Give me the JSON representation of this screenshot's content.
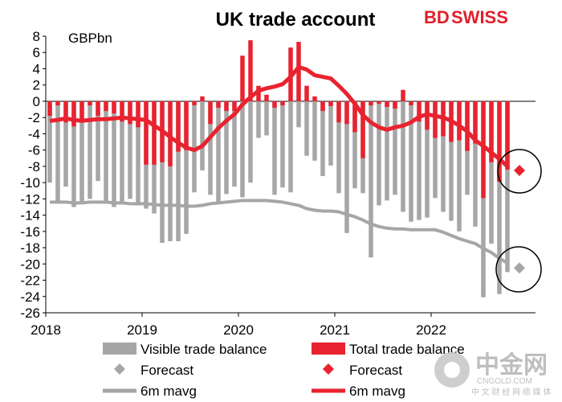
{
  "chart_data": {
    "type": "bar",
    "title": "UK trade account",
    "unit_label": "GBPbn",
    "xlabel": "",
    "ylabel": "GBPbn",
    "ylim": [
      -26,
      8
    ],
    "y_ticks": [
      8,
      6,
      4,
      2,
      0,
      -2,
      -4,
      -6,
      -8,
      -10,
      -12,
      -14,
      -16,
      -18,
      -20,
      -22,
      -24,
      -26
    ],
    "x_ticks": [
      "2018",
      "2019",
      "2020",
      "2021",
      "2022"
    ],
    "months_start": "2018-01",
    "series": [
      {
        "name": "Visible trade balance",
        "kind": "bar",
        "color": "#a6a6a6",
        "values": [
          -10,
          -12.3,
          -10.5,
          -13,
          -12.5,
          -12,
          -9.8,
          -12.5,
          -13,
          -12.5,
          -12,
          -12.8,
          -13.2,
          -13.8,
          -17.4,
          -17.2,
          -17.2,
          -16.3,
          -11.2,
          -8.5,
          -11.5,
          -12.4,
          -11.4,
          -10.5,
          -11.8,
          -10,
          -4.5,
          -4.2,
          -11.5,
          -10.6,
          -11.2,
          -3.2,
          -6.7,
          -7.3,
          -9.2,
          -7.9,
          -11.3,
          -16.2,
          -10.7,
          -11.3,
          -19.2,
          -12.8,
          -12.2,
          -11.5,
          -13.6,
          -14.8,
          -14.6,
          -14.3,
          -11.9,
          -13.6,
          -14.7,
          -16,
          -11.5,
          -15.4,
          -24.1,
          -17.5,
          -23.7,
          -21
        ]
      },
      {
        "name": "Total trade balance",
        "kind": "bar",
        "color": "#e8232f",
        "values": [
          -1.8,
          -0.5,
          -2.6,
          -3.1,
          -2.5,
          -0.5,
          -1.8,
          -1.2,
          -1.5,
          -2.5,
          -2.8,
          -3.2,
          -7.8,
          -7.8,
          -7.5,
          -8,
          -6.2,
          -6,
          -0.5,
          0.6,
          -2.8,
          -0.8,
          -1.2,
          -1.2,
          5.6,
          7.5,
          1.9,
          0.8,
          -0.8,
          -0.5,
          6.6,
          7.3,
          1.9,
          0.6,
          -1.2,
          -0.6,
          -2.6,
          -2.8,
          -3.8,
          -7,
          -0.5,
          -0.3,
          -0.7,
          -0.9,
          1.4,
          -0.5,
          -2.5,
          -3.5,
          -4.5,
          -4.3,
          -5,
          -4.8,
          -6.1,
          -5.2,
          -11.9,
          -7.5,
          -9.9,
          -8.4
        ]
      },
      {
        "name": "6m mavg",
        "kind": "line",
        "color": "#e8232f",
        "values": [
          -2.4,
          -2.3,
          -2.1,
          -2.3,
          -2.4,
          -2.3,
          -2.2,
          -2.2,
          -2.1,
          -2.0,
          -2.1,
          -2.2,
          -2.3,
          -3.0,
          -3.6,
          -4.4,
          -5.1,
          -5.7,
          -6.0,
          -5.5,
          -4.4,
          -3.3,
          -2.4,
          -1.6,
          -0.4,
          0.5,
          1.3,
          1.6,
          1.8,
          2.1,
          3.0,
          4.2,
          3.9,
          3.2,
          3.0,
          2.8,
          1.9,
          0.9,
          -0.3,
          -1.7,
          -2.6,
          -3.2,
          -3.5,
          -3.2,
          -3.0,
          -2.6,
          -1.9,
          -1.6,
          -1.8,
          -2.0,
          -2.4,
          -3.0,
          -3.7,
          -4.8,
          -5.5,
          -6.3,
          -7.1,
          -8.0
        ]
      },
      {
        "name": "6m mavg",
        "kind": "line",
        "color": "#a6a6a6",
        "values": [
          -12.4,
          -12.4,
          -12.4,
          -12.5,
          -12.5,
          -12.4,
          -12.4,
          -12.4,
          -12.5,
          -12.5,
          -12.6,
          -12.6,
          -12.6,
          -12.7,
          -12.8,
          -12.8,
          -12.8,
          -12.9,
          -12.9,
          -12.8,
          -12.6,
          -12.5,
          -12.4,
          -12.3,
          -12.2,
          -12.2,
          -12.2,
          -12.2,
          -12.3,
          -12.4,
          -12.6,
          -12.8,
          -13.2,
          -13.4,
          -13.5,
          -13.5,
          -13.6,
          -13.9,
          -14.2,
          -14.6,
          -15.1,
          -15.4,
          -15.6,
          -15.7,
          -15.7,
          -15.8,
          -15.8,
          -15.8,
          -15.8,
          -16.1,
          -16.5,
          -16.9,
          -17.2,
          -17.5,
          -18.1,
          -18.6,
          -19.3,
          -19.9
        ]
      },
      {
        "name": "Forecast",
        "kind": "point",
        "color": "#a6a6a6",
        "x_index": 58,
        "value": -20.5
      },
      {
        "name": "Forecast",
        "kind": "point",
        "color": "#e8232f",
        "x_index": 58,
        "value": -8.5
      }
    ],
    "legend": [
      {
        "label": "Visible trade balance",
        "symbol": "bar",
        "color": "#a6a6a6"
      },
      {
        "label": "Total trade balance",
        "symbol": "bar",
        "color": "#e8232f"
      },
      {
        "label": "Forecast",
        "symbol": "diamond",
        "color": "#a6a6a6"
      },
      {
        "label": "Forecast",
        "symbol": "diamond",
        "color": "#e8232f"
      },
      {
        "label": "6m mavg",
        "symbol": "line",
        "color": "#a6a6a6"
      },
      {
        "label": "6m mavg",
        "symbol": "line",
        "color": "#e8232f"
      }
    ],
    "legend_position": "bottom",
    "grid": false
  },
  "brand": {
    "part1": "BD",
    "part2": "SWISS",
    "color": "#e0202c"
  },
  "watermark": {
    "text": "中金网",
    "sub": "中 文 财 经 网 络 媒 体",
    "url": "CNGOLD.COM"
  }
}
